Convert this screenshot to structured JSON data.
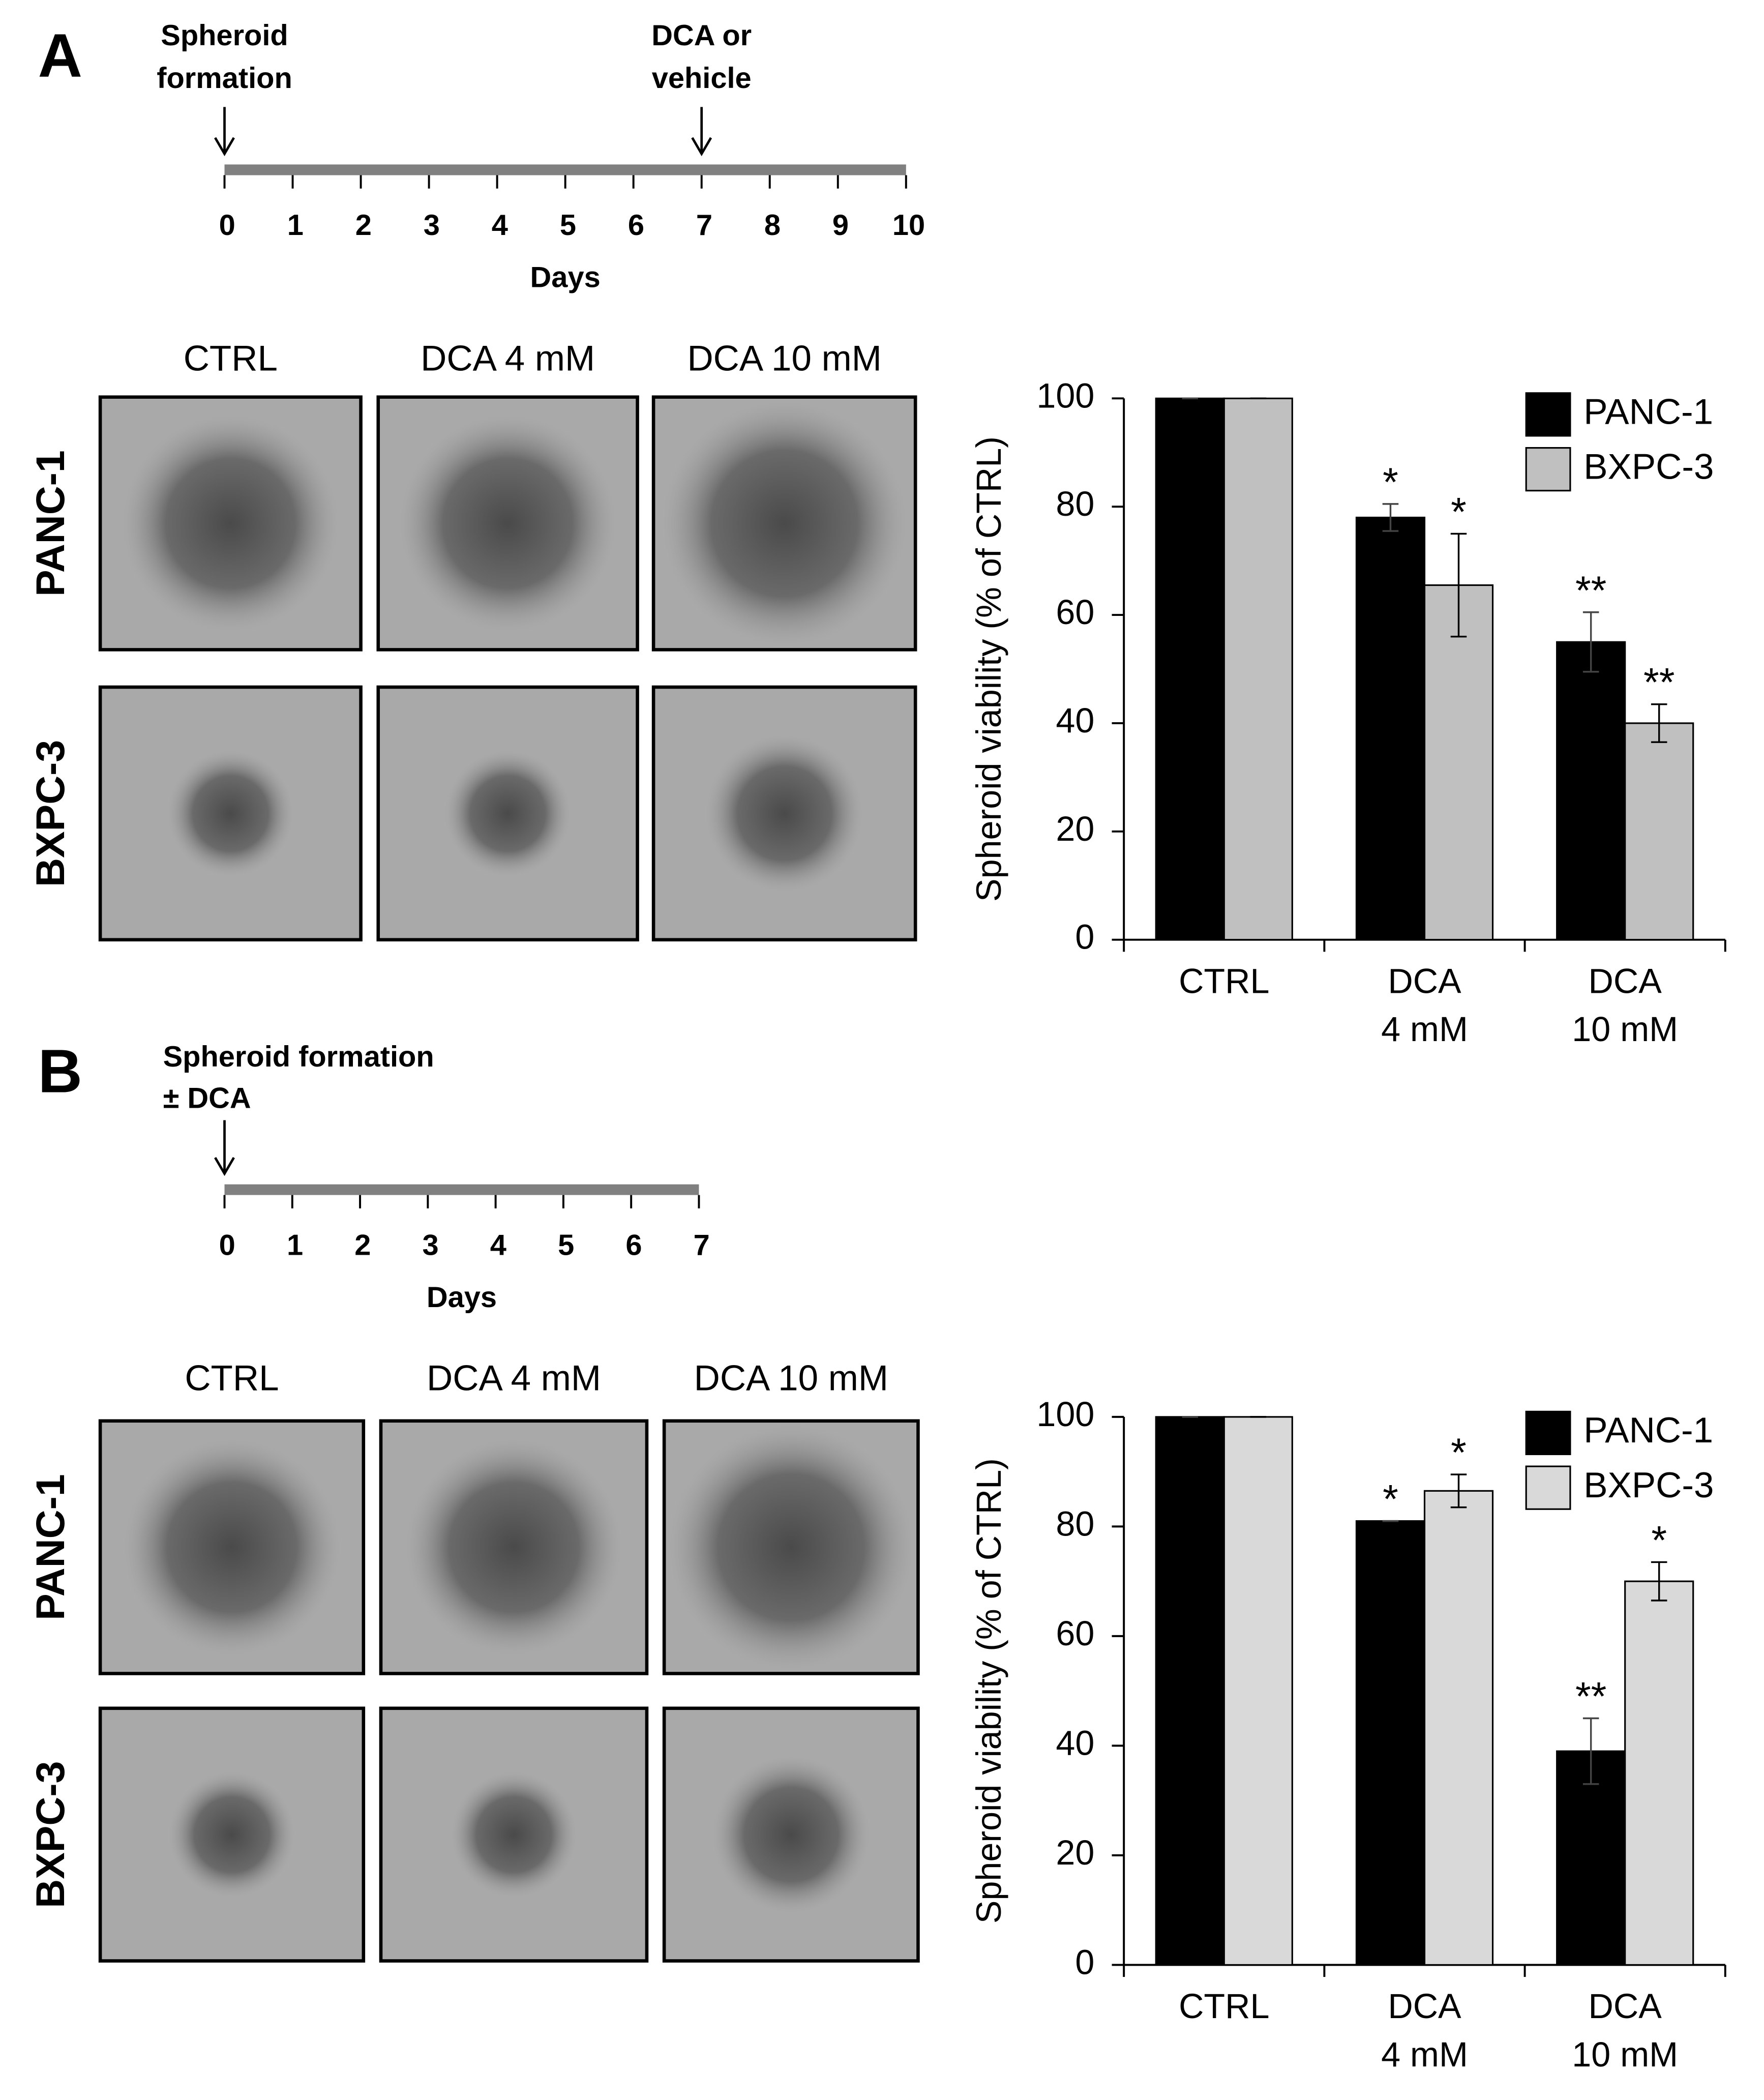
{
  "panels": [
    {
      "label": "A",
      "timeline": {
        "xlim": [
          0,
          10
        ],
        "xticks": [
          0,
          1,
          2,
          3,
          4,
          5,
          6,
          7,
          8,
          9,
          10
        ],
        "xlabel": "Days",
        "events": [
          {
            "x": 0,
            "text": [
              "Spheroid",
              "formation"
            ]
          },
          {
            "x": 7,
            "text": [
              "DCA or",
              "vehicle"
            ]
          }
        ]
      },
      "images": {
        "columns": [
          "CTRL",
          "DCA 4 mM",
          "DCA 10 mM"
        ],
        "rows": [
          "PANC-1",
          "BXPC-3"
        ]
      }
    },
    {
      "label": "B",
      "timeline": {
        "xlim": [
          0,
          7
        ],
        "xticks": [
          0,
          1,
          2,
          3,
          4,
          5,
          6,
          7
        ],
        "xlabel": "Days",
        "events": [
          {
            "x": 0,
            "text": [
              "Spheroid formation",
              "± DCA"
            ]
          }
        ]
      },
      "images": {
        "columns": [
          "CTRL",
          "DCA 4 mM",
          "DCA 10 mM"
        ],
        "rows": [
          "PANC-1",
          "BXPC-3"
        ]
      }
    }
  ],
  "chart_data": [
    {
      "type": "bar",
      "ylabel": "Spheroid viability (% of CTRL)",
      "categories": [
        [
          "CTRL"
        ],
        [
          "DCA",
          "4 mM"
        ],
        [
          "DCA",
          "10 mM"
        ]
      ],
      "ylim": [
        0,
        100
      ],
      "yticks": [
        0,
        20,
        40,
        60,
        80,
        100
      ],
      "legend": "upper right",
      "series": [
        {
          "name": "PANC-1",
          "color": "#000000",
          "values": [
            100,
            78,
            55
          ],
          "errors": [
            0,
            2.5,
            5.5
          ],
          "annotations": [
            null,
            "*",
            "**"
          ]
        },
        {
          "name": "BXPC-3",
          "color": "#c0c0c0",
          "values": [
            100,
            65.5,
            40
          ],
          "errors": [
            0,
            9.5,
            3.5
          ],
          "annotations": [
            null,
            "*",
            "**"
          ]
        }
      ]
    },
    {
      "type": "bar",
      "ylabel": "Spheroid viability (% of CTRL)",
      "categories": [
        [
          "CTRL"
        ],
        [
          "DCA",
          "4 mM"
        ],
        [
          "DCA",
          "10 mM"
        ]
      ],
      "ylim": [
        0,
        100
      ],
      "yticks": [
        0,
        20,
        40,
        60,
        80,
        100
      ],
      "legend": "upper right",
      "series": [
        {
          "name": "PANC-1",
          "color": "#000000",
          "values": [
            100,
            81,
            39
          ],
          "errors": [
            0,
            0,
            6
          ],
          "annotations": [
            null,
            "*",
            "**"
          ]
        },
        {
          "name": "BXPC-3",
          "color": "#d9d9d9",
          "values": [
            100,
            86.5,
            70
          ],
          "errors": [
            0,
            3,
            3.5
          ],
          "annotations": [
            null,
            "*",
            "*"
          ]
        }
      ]
    }
  ]
}
